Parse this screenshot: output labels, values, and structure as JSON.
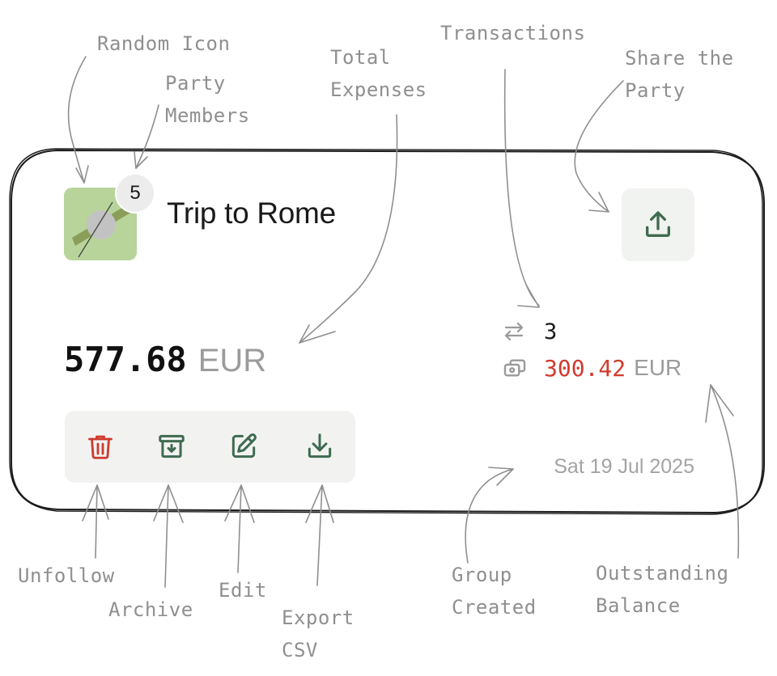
{
  "group": {
    "title": "Trip to Rome",
    "member_count": "5",
    "avatar_icon": "random-generated-icon",
    "total_amount": "577.68",
    "total_currency": "EUR",
    "transactions_count": "3",
    "outstanding_amount": "300.42",
    "outstanding_currency": "EUR",
    "created_date": "Sat 19 Jul 2025"
  },
  "icons": {
    "share": "share-icon",
    "transactions": "transfer-arrows-icon",
    "balance": "cards-icon",
    "unfollow": "trash-icon",
    "archive": "archive-icon",
    "edit": "edit-icon",
    "export": "download-icon"
  },
  "colors": {
    "accent_green": "#3f6b50",
    "danger_red": "#d03b2f",
    "avatar_bg": "#b8d49a",
    "annotation_gray": "#8f8f8f"
  },
  "annotations": {
    "random_icon": "Random Icon",
    "party_members_line1": "Party",
    "party_members_line2": "Members",
    "total_expenses_line1": "Total",
    "total_expenses_line2": "Expenses",
    "transactions": "Transactions",
    "share_line1": "Share the",
    "share_line2": "Party",
    "unfollow": "Unfollow",
    "archive": "Archive",
    "edit": "Edit",
    "export_line1": "Export",
    "export_line2": "CSV",
    "group_created_line1": "Group",
    "group_created_line2": "Created",
    "outstanding_line1": "Outstanding",
    "outstanding_line2": "Balance"
  }
}
